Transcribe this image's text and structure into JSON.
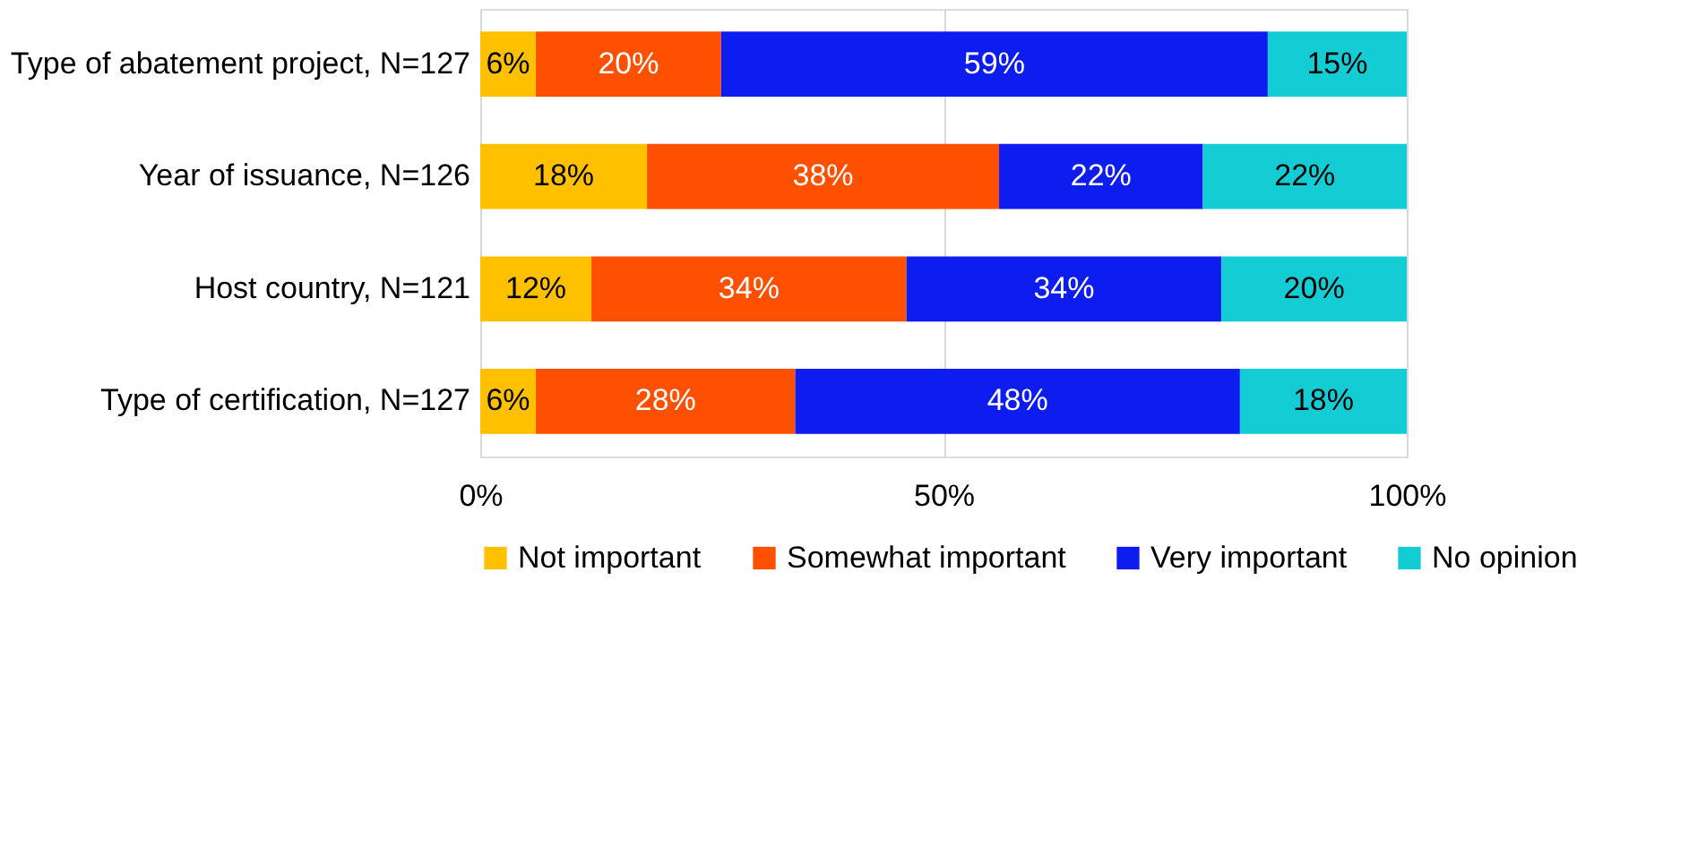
{
  "chart_data": {
    "type": "bar",
    "orientation": "horizontal",
    "stacked": true,
    "categories": [
      "Type of abatement project, N=127",
      "Year of issuance, N=126",
      "Host country, N=121",
      "Type of certification, N=127"
    ],
    "series": [
      {
        "name": "Not important",
        "color": "#ffc000",
        "values": [
          6,
          18,
          12,
          6
        ],
        "value_labels": [
          "6%",
          "18%",
          "12%",
          "6%"
        ]
      },
      {
        "name": "Somewhat important",
        "color": "#ff5000",
        "values": [
          20,
          38,
          34,
          28
        ],
        "value_labels": [
          "20%",
          "38%",
          "34%",
          "28%"
        ]
      },
      {
        "name": "Very important",
        "color": "#0d1df0",
        "values": [
          59,
          22,
          34,
          48
        ],
        "value_labels": [
          "59%",
          "22%",
          "34%",
          "48%"
        ]
      },
      {
        "name": "No opinion",
        "color": "#14ccd4",
        "values": [
          15,
          22,
          20,
          18
        ],
        "value_labels": [
          "15%",
          "22%",
          "20%",
          "18%"
        ]
      }
    ],
    "xlim": [
      0,
      100
    ],
    "xticks": [
      {
        "value": 0,
        "label": "0%"
      },
      {
        "value": 50,
        "label": "50%"
      },
      {
        "value": 100,
        "label": "100%"
      }
    ],
    "grid": "x",
    "legend": "bottom"
  }
}
